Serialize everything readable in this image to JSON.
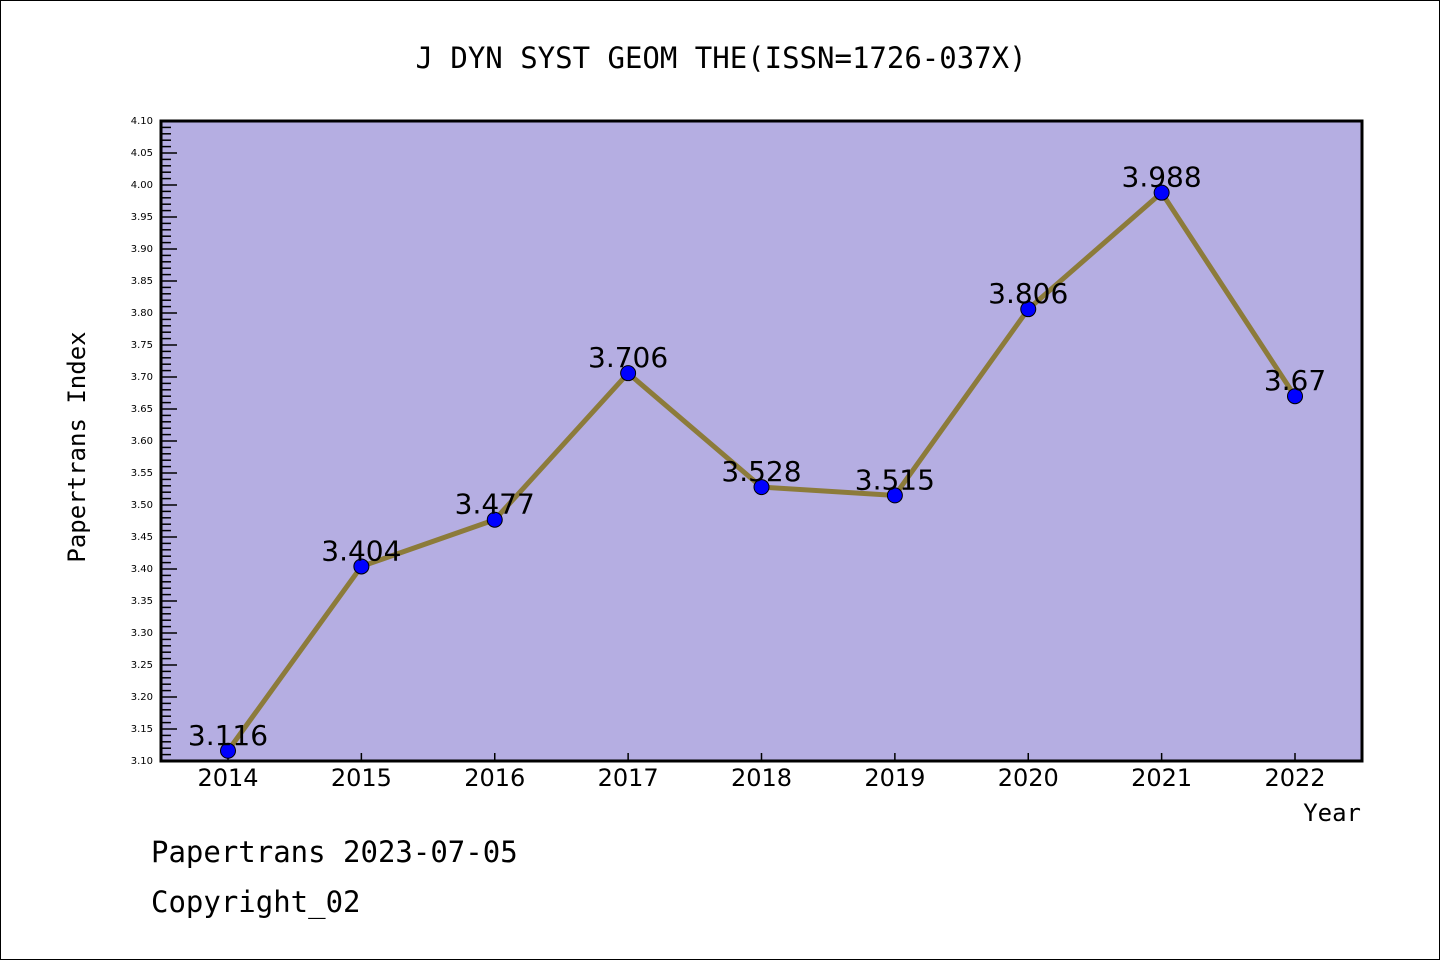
{
  "chart_data": {
    "type": "line",
    "title": "J DYN SYST GEOM THE(ISSN=1726-037X)",
    "xlabel": "Year",
    "ylabel": "Papertrans Index",
    "categories": [
      "2014",
      "2015",
      "2016",
      "2017",
      "2018",
      "2019",
      "2020",
      "2021",
      "2022"
    ],
    "values": [
      3.116,
      3.404,
      3.477,
      3.706,
      3.528,
      3.515,
      3.806,
      3.988,
      3.67
    ],
    "data_labels": [
      "3.116",
      "3.404",
      "3.477",
      "3.706",
      "3.528",
      "3.515",
      "3.806",
      "3.988",
      "3.67"
    ],
    "ylim": [
      3.1,
      4.1
    ],
    "ytick_step": 0.05,
    "grid": false,
    "colors": {
      "plot_bg": "#b5aee2",
      "line": "#8c7b3a",
      "marker": "#0000ff"
    }
  },
  "footer": {
    "line1": "Papertrans 2023-07-05",
    "line2": "Copyright_02"
  }
}
